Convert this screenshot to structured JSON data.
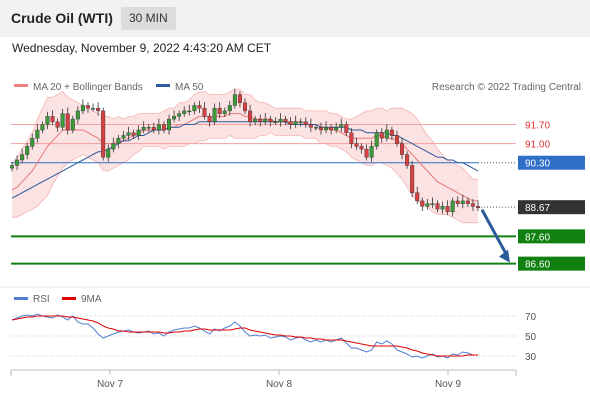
{
  "header": {
    "title": "Crude Oil (WTI)",
    "interval": "30 MIN"
  },
  "datetime": "Wednesday, November 9, 2022 4:43:20 AM CET",
  "legend_main": [
    {
      "label": "MA 20 + Bollinger Bands",
      "color": "#f08080"
    },
    {
      "label": "MA 50",
      "color": "#2f5b9a"
    }
  ],
  "copyright": "Research © 2022 Trading Central",
  "legend_rsi": [
    {
      "label": "RSI",
      "color": "#4f7fd4"
    },
    {
      "label": "9MA",
      "color": "#e00000"
    }
  ],
  "colors": {
    "resistance": "#d33",
    "current": "#2f6fc7",
    "support": "#108010",
    "last": "#333333",
    "arrow": "#2a5a9a"
  },
  "chart_data": [
    {
      "type": "candlestick",
      "title": "Crude Oil (WTI)",
      "x_ticks": [
        "Nov 7",
        "Nov 8",
        "Nov 9"
      ],
      "ylim": [
        86.0,
        92.6
      ],
      "levels": [
        {
          "value": 91.7,
          "label": "91.70",
          "kind": "resistance"
        },
        {
          "value": 91.0,
          "label": "91.00",
          "kind": "resistance"
        },
        {
          "value": 90.3,
          "label": "90.30",
          "kind": "current"
        },
        {
          "value": 88.67,
          "label": "88.67",
          "kind": "last"
        },
        {
          "value": 87.6,
          "label": "87.60",
          "kind": "support"
        },
        {
          "value": 86.6,
          "label": "86.60",
          "kind": "support"
        }
      ],
      "close": [
        90.2,
        90.4,
        90.6,
        90.9,
        91.2,
        91.5,
        91.7,
        92.0,
        91.8,
        91.6,
        92.1,
        91.5,
        91.9,
        92.2,
        92.4,
        92.3,
        92.3,
        92.2,
        90.5,
        90.8,
        91.0,
        91.2,
        91.3,
        91.4,
        91.3,
        91.5,
        91.6,
        91.6,
        91.5,
        91.7,
        91.5,
        91.9,
        92.0,
        92.1,
        92.2,
        92.2,
        92.4,
        92.3,
        92.0,
        91.8,
        92.3,
        92.1,
        92.2,
        92.4,
        92.8,
        92.5,
        92.2,
        91.8,
        91.9,
        91.8,
        91.9,
        91.8,
        91.8,
        91.9,
        91.8,
        91.7,
        91.8,
        91.8,
        91.7,
        91.6,
        91.6,
        91.5,
        91.6,
        91.5,
        91.6,
        91.7,
        91.4,
        91.0,
        90.9,
        90.8,
        90.5,
        90.9,
        91.4,
        91.2,
        91.5,
        91.3,
        91.0,
        90.6,
        90.2,
        89.2,
        88.9,
        88.7,
        88.8,
        88.8,
        88.6,
        88.7,
        88.5,
        88.9,
        88.8,
        88.9,
        88.8,
        88.7,
        88.65
      ],
      "ma20": [
        89.3,
        89.4,
        89.6,
        89.8,
        90.0,
        90.3,
        90.6,
        90.9,
        91.1,
        91.3,
        91.5,
        91.5,
        91.5,
        91.5,
        91.5,
        91.4,
        91.3,
        91.2,
        91.0,
        91.0,
        91.0,
        91.1,
        91.1,
        91.2,
        91.3,
        91.4,
        91.5,
        91.5,
        91.5,
        91.5,
        91.5,
        91.6,
        91.6,
        91.7,
        91.7,
        91.8,
        91.9,
        92.0,
        92.0,
        92.0,
        92.0,
        92.0,
        92.0,
        92.1,
        92.1,
        92.1,
        92.0,
        92.0,
        91.9,
        91.9,
        91.9,
        91.9,
        91.8,
        91.8,
        91.8,
        91.8,
        91.8,
        91.8,
        91.7,
        91.7,
        91.7,
        91.6,
        91.6,
        91.5,
        91.5,
        91.4,
        91.3,
        91.2,
        91.2,
        91.2,
        91.2,
        91.2,
        91.3,
        91.3,
        91.2,
        91.2,
        91.1,
        91.0,
        90.8,
        90.6,
        90.4,
        90.2,
        90.0,
        89.8,
        89.6,
        89.5,
        89.4,
        89.3,
        89.2,
        89.1,
        89.0,
        88.9,
        88.9
      ],
      "ma50": [
        89.0,
        89.1,
        89.2,
        89.3,
        89.4,
        89.5,
        89.6,
        89.7,
        89.8,
        89.9,
        90.0,
        90.1,
        90.2,
        90.3,
        90.4,
        90.5,
        90.6,
        90.7,
        90.7,
        90.8,
        90.9,
        91.0,
        91.1,
        91.1,
        91.2,
        91.3,
        91.3,
        91.4,
        91.5,
        91.5,
        91.5,
        91.6,
        91.6,
        91.6,
        91.7,
        91.7,
        91.7,
        91.8,
        91.8,
        91.8,
        91.8,
        91.8,
        91.8,
        91.8,
        91.8,
        91.8,
        91.8,
        91.8,
        91.8,
        91.8,
        91.8,
        91.8,
        91.8,
        91.8,
        91.8,
        91.7,
        91.7,
        91.7,
        91.7,
        91.7,
        91.7,
        91.6,
        91.6,
        91.6,
        91.6,
        91.6,
        91.6,
        91.5,
        91.5,
        91.5,
        91.4,
        91.4,
        91.4,
        91.4,
        91.4,
        91.3,
        91.3,
        91.2,
        91.1,
        91.0,
        90.9,
        90.8,
        90.7,
        90.6,
        90.5,
        90.5,
        90.4,
        90.4,
        90.3,
        90.3,
        90.2,
        90.1,
        90.0
      ],
      "bb_width": [
        1.0,
        1.1,
        1.2,
        1.3,
        1.4,
        1.6,
        1.7,
        1.8,
        1.6,
        1.5,
        1.4,
        1.2,
        1.1,
        1.0,
        0.9,
        0.9,
        0.9,
        0.9,
        1.0,
        1.0,
        0.9,
        0.9,
        0.8,
        0.8,
        0.7,
        0.7,
        0.6,
        0.6,
        0.6,
        0.6,
        0.7,
        0.7,
        0.7,
        0.8,
        0.8,
        0.8,
        0.9,
        0.9,
        0.9,
        0.8,
        0.8,
        0.8,
        0.8,
        0.8,
        0.9,
        0.9,
        0.8,
        0.8,
        0.7,
        0.6,
        0.6,
        0.5,
        0.5,
        0.5,
        0.5,
        0.5,
        0.5,
        0.5,
        0.5,
        0.5,
        0.5,
        0.6,
        0.6,
        0.6,
        0.6,
        0.6,
        0.6,
        0.7,
        0.8,
        0.9,
        1.0,
        1.0,
        1.0,
        1.0,
        1.0,
        1.1,
        1.2,
        1.3,
        1.4,
        1.5,
        1.5,
        1.4,
        1.3,
        1.3,
        1.2,
        1.1,
        1.0,
        1.0,
        1.0,
        1.0,
        0.9,
        0.8,
        0.8
      ]
    },
    {
      "type": "line",
      "title": "RSI",
      "y_ticks": [
        70,
        50,
        30
      ],
      "ylim": [
        20,
        80
      ],
      "series": [
        {
          "name": "RSI",
          "values": [
            66,
            68,
            70,
            71,
            70,
            72,
            70,
            69,
            68,
            71,
            69,
            66,
            70,
            64,
            62,
            62,
            58,
            52,
            48,
            50,
            52,
            54,
            55,
            56,
            54,
            53,
            54,
            55,
            52,
            53,
            50,
            54,
            56,
            57,
            58,
            58,
            60,
            58,
            55,
            52,
            57,
            55,
            58,
            60,
            64,
            60,
            54,
            50,
            51,
            50,
            51,
            48,
            49,
            50,
            49,
            46,
            48,
            49,
            46,
            44,
            46,
            44,
            46,
            44,
            46,
            48,
            43,
            38,
            38,
            36,
            34,
            36,
            44,
            42,
            45,
            42,
            36,
            34,
            32,
            29,
            30,
            28,
            30,
            32,
            29,
            30,
            28,
            32,
            31,
            34,
            33,
            31,
            31
          ]
        },
        {
          "name": "9MA",
          "values": [
            66,
            67,
            68,
            69,
            69,
            70,
            70,
            70,
            70,
            70,
            70,
            69,
            69,
            68,
            67,
            66,
            65,
            63,
            60,
            58,
            57,
            55,
            55,
            54,
            54,
            54,
            54,
            54,
            54,
            54,
            53,
            53,
            54,
            54,
            55,
            55,
            56,
            57,
            57,
            56,
            56,
            56,
            56,
            56,
            57,
            58,
            58,
            56,
            55,
            54,
            53,
            52,
            51,
            51,
            50,
            50,
            49,
            49,
            48,
            48,
            47,
            47,
            46,
            46,
            46,
            46,
            45,
            44,
            43,
            42,
            41,
            40,
            40,
            40,
            40,
            40,
            40,
            39,
            38,
            36,
            35,
            33,
            32,
            31,
            30,
            30,
            30,
            30,
            30,
            30,
            31,
            31,
            31
          ]
        }
      ]
    }
  ]
}
